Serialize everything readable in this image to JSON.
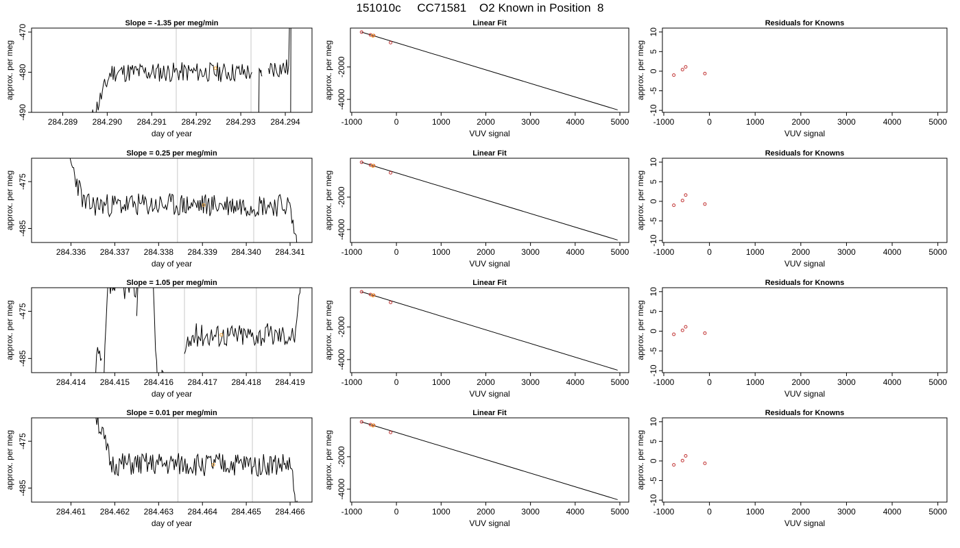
{
  "page": {
    "title": "151010c     CC71581    O2 Known in Position  8"
  },
  "chart_data": [
    {
      "row": 1,
      "type": "line",
      "title": "Slope =  -1.35  per meg/min",
      "xlabel": "day of year",
      "ylabel": "approx. per meg",
      "xlim": [
        284.2883,
        284.2946
      ],
      "ylim": [
        -490,
        -469
      ],
      "xticks": [
        284.289,
        284.29,
        284.291,
        284.292,
        284.293,
        284.294
      ],
      "xtick_labels": [
        "284.289",
        "284.290",
        "284.291",
        "284.292",
        "284.293",
        "284.294"
      ],
      "yticks": [
        -490,
        -480,
        -470
      ],
      "ytick_labels": [
        "-490",
        "-480",
        "-470"
      ],
      "vlines": [
        284.29155,
        284.29323
      ],
      "marker": {
        "x": 284.29243,
        "y": -479,
        "color": "#f0a030"
      },
      "seed": 11,
      "segments": [
        {
          "start": 284.28965,
          "end": 284.29325,
          "y0": -492,
          "y1": -480
        },
        {
          "start": 284.2934,
          "end": 284.29348,
          "y0": -496,
          "y1": -481
        },
        {
          "start": 284.29362,
          "end": 284.2941,
          "y0": -479,
          "y1": -479,
          "y2": -465
        },
        {
          "start": 284.29412,
          "end": 284.29416,
          "y0": -495,
          "y1": -465
        }
      ]
    },
    {
      "row": 1,
      "type": "scatter",
      "title": "Linear Fit",
      "xlabel": "VUV signal",
      "ylabel": "approx. per meg",
      "xlim": [
        -1030,
        5200
      ],
      "ylim": [
        -4800,
        400
      ],
      "xticks": [
        -1000,
        0,
        1000,
        2000,
        3000,
        4000,
        5000
      ],
      "xtick_labels": [
        "-1000",
        "0",
        "1000",
        "2000",
        "3000",
        "4000",
        "5000"
      ],
      "yticks": [
        -4000,
        -2000
      ],
      "ytick_labels": [
        "-4000",
        "-2000"
      ],
      "points": [
        [
          -780,
          150
        ],
        [
          -580,
          -20
        ],
        [
          -510,
          -60
        ],
        [
          -130,
          -500
        ]
      ],
      "highlight": [
        -525,
        -70
      ],
      "fit_line": [
        [
          -780,
          150
        ],
        [
          4950,
          -4650
        ]
      ]
    },
    {
      "row": 1,
      "type": "scatter",
      "title": "Residuals for Knowns",
      "xlabel": "VUV signal",
      "ylabel": "approx. per meg",
      "xlim": [
        -1030,
        5200
      ],
      "ylim": [
        -10.5,
        11
      ],
      "xticks": [
        -1000,
        0,
        1000,
        2000,
        3000,
        4000,
        5000
      ],
      "xtick_labels": [
        "-1000",
        "0",
        "1000",
        "2000",
        "3000",
        "4000",
        "5000"
      ],
      "yticks": [
        -10,
        -5,
        0,
        5,
        10
      ],
      "ytick_labels": [
        "-10",
        "-5",
        "0",
        "5",
        "10"
      ],
      "points": [
        [
          -780,
          -1.0
        ],
        [
          -590,
          0.4
        ],
        [
          -520,
          1.1
        ],
        [
          -100,
          -0.6
        ]
      ]
    },
    {
      "row": 2,
      "type": "line",
      "title": "Slope =  0.25  per meg/min",
      "xlabel": "day of year",
      "ylabel": "approx. per meg",
      "xlim": [
        284.3351,
        284.3415
      ],
      "ylim": [
        -488,
        -470
      ],
      "xticks": [
        284.336,
        284.337,
        284.338,
        284.339,
        284.34,
        284.341
      ],
      "xtick_labels": [
        "284.336",
        "284.337",
        "284.338",
        "284.339",
        "284.340",
        "284.341"
      ],
      "yticks": [
        -485,
        -475
      ],
      "ytick_labels": [
        "-485",
        "-475"
      ],
      "vlines": [
        284.33843,
        284.34017
      ],
      "marker": {
        "x": 284.33903,
        "y": -480,
        "color": "#f0a030"
      },
      "seed": 23,
      "segments": [
        {
          "start": 284.33589,
          "end": 284.34119,
          "y0": -468,
          "y1": -480,
          "y2": -490
        }
      ]
    },
    {
      "row": 2,
      "type": "scatter",
      "title": "Linear Fit",
      "xlabel": "VUV signal",
      "ylabel": "approx. per meg",
      "xlim": [
        -1030,
        5200
      ],
      "ylim": [
        -4800,
        400
      ],
      "xticks": [
        -1000,
        0,
        1000,
        2000,
        3000,
        4000,
        5000
      ],
      "xtick_labels": [
        "-1000",
        "0",
        "1000",
        "2000",
        "3000",
        "4000",
        "5000"
      ],
      "yticks": [
        -4000,
        -2000
      ],
      "ytick_labels": [
        "-4000",
        "-2000"
      ],
      "points": [
        [
          -780,
          150
        ],
        [
          -580,
          -20
        ],
        [
          -510,
          -60
        ],
        [
          -130,
          -500
        ]
      ],
      "highlight": [
        -525,
        -70
      ],
      "fit_line": [
        [
          -780,
          150
        ],
        [
          4950,
          -4650
        ]
      ]
    },
    {
      "row": 2,
      "type": "scatter",
      "title": "Residuals for Knowns",
      "xlabel": "VUV signal",
      "ylabel": "approx. per meg",
      "xlim": [
        -1030,
        5200
      ],
      "ylim": [
        -10.5,
        11
      ],
      "xticks": [
        -1000,
        0,
        1000,
        2000,
        3000,
        4000,
        5000
      ],
      "xtick_labels": [
        "-1000",
        "0",
        "1000",
        "2000",
        "3000",
        "4000",
        "5000"
      ],
      "yticks": [
        -10,
        -5,
        0,
        5,
        10
      ],
      "ytick_labels": [
        "-10",
        "-5",
        "0",
        "5",
        "10"
      ],
      "points": [
        [
          -780,
          -1.0
        ],
        [
          -590,
          0.2
        ],
        [
          -520,
          1.6
        ],
        [
          -100,
          -0.7
        ]
      ]
    },
    {
      "row": 3,
      "type": "line",
      "title": "Slope =  1.05  per meg/min",
      "xlabel": "day of year",
      "ylabel": "approx. per meg",
      "xlim": [
        284.4131,
        284.4195
      ],
      "ylim": [
        -488,
        -470
      ],
      "xticks": [
        284.414,
        284.415,
        284.416,
        284.417,
        284.418,
        284.419
      ],
      "xtick_labels": [
        "284.414",
        "284.415",
        "284.416",
        "284.417",
        "284.418",
        "284.419"
      ],
      "yticks": [
        -485,
        -475
      ],
      "ytick_labels": [
        "-485",
        "-475"
      ],
      "vlines": [
        284.41659,
        284.41823
      ],
      "marker": {
        "x": 284.41743,
        "y": -480,
        "color": "#f0a030"
      },
      "seed": 37,
      "segments": [
        {
          "start": 284.41456,
          "end": 284.4147,
          "y0": -489,
          "y1": -485
        },
        {
          "start": 284.41475,
          "end": 284.4155,
          "y0": -490,
          "y1": -470
        },
        {
          "start": 284.4155,
          "end": 284.41588,
          "y0": -476,
          "y1": -466
        },
        {
          "start": 284.41588,
          "end": 284.41659,
          "y0": -470,
          "y1": -490
        },
        {
          "start": 284.41659,
          "end": 284.41925,
          "y0": -484,
          "y1": -480,
          "y2": -467
        }
      ]
    },
    {
      "row": 3,
      "type": "scatter",
      "title": "Linear Fit",
      "xlabel": "VUV signal",
      "ylabel": "approx. per meg",
      "xlim": [
        -1030,
        5200
      ],
      "ylim": [
        -4800,
        400
      ],
      "xticks": [
        -1000,
        0,
        1000,
        2000,
        3000,
        4000,
        5000
      ],
      "xtick_labels": [
        "-1000",
        "0",
        "1000",
        "2000",
        "3000",
        "4000",
        "5000"
      ],
      "yticks": [
        -4000,
        -2000
      ],
      "ytick_labels": [
        "-4000",
        "-2000"
      ],
      "points": [
        [
          -780,
          150
        ],
        [
          -580,
          -20
        ],
        [
          -510,
          -60
        ],
        [
          -130,
          -500
        ]
      ],
      "highlight": [
        -525,
        -70
      ],
      "fit_line": [
        [
          -780,
          150
        ],
        [
          4950,
          -4650
        ]
      ]
    },
    {
      "row": 3,
      "type": "scatter",
      "title": "Residuals for Knowns",
      "xlabel": "VUV signal",
      "ylabel": "approx. per meg",
      "xlim": [
        -1030,
        5200
      ],
      "ylim": [
        -10.5,
        11
      ],
      "xticks": [
        -1000,
        0,
        1000,
        2000,
        3000,
        4000,
        5000
      ],
      "xtick_labels": [
        "-1000",
        "0",
        "1000",
        "2000",
        "3000",
        "4000",
        "5000"
      ],
      "yticks": [
        -10,
        -5,
        0,
        5,
        10
      ],
      "ytick_labels": [
        "-10",
        "-5",
        "0",
        "5",
        "10"
      ],
      "points": [
        [
          -780,
          -0.8
        ],
        [
          -590,
          0.2
        ],
        [
          -520,
          1.1
        ],
        [
          -100,
          -0.5
        ]
      ]
    },
    {
      "row": 4,
      "type": "line",
      "title": "Slope =  0.01  per meg/min",
      "xlabel": "day of year",
      "ylabel": "approx. per meg",
      "xlim": [
        284.4601,
        284.4665
      ],
      "ylim": [
        -488,
        -470
      ],
      "xticks": [
        284.461,
        284.462,
        284.463,
        284.464,
        284.465,
        284.466
      ],
      "xtick_labels": [
        "284.461",
        "284.462",
        "284.463",
        "284.464",
        "284.465",
        "284.466"
      ],
      "yticks": [
        -485,
        -475
      ],
      "ytick_labels": [
        "-485",
        "-475"
      ],
      "vlines": [
        284.46344,
        284.46514
      ],
      "marker": {
        "x": 284.46425,
        "y": -480,
        "color": "#f0a030"
      },
      "seed": 51,
      "segments": [
        {
          "start": 284.46154,
          "end": 284.46618,
          "y0": -468,
          "y1": -480,
          "y2": -490
        }
      ]
    },
    {
      "row": 4,
      "type": "scatter",
      "title": "Linear Fit",
      "xlabel": "VUV signal",
      "ylabel": "approx. per meg",
      "xlim": [
        -1030,
        5200
      ],
      "ylim": [
        -4800,
        400
      ],
      "xticks": [
        -1000,
        0,
        1000,
        2000,
        3000,
        4000,
        5000
      ],
      "xtick_labels": [
        "-1000",
        "0",
        "1000",
        "2000",
        "3000",
        "4000",
        "5000"
      ],
      "yticks": [
        -4000,
        -2000
      ],
      "ytick_labels": [
        "-4000",
        "-2000"
      ],
      "points": [
        [
          -780,
          150
        ],
        [
          -580,
          -20
        ],
        [
          -510,
          -60
        ],
        [
          -130,
          -500
        ]
      ],
      "highlight": [
        -525,
        -70
      ],
      "fit_line": [
        [
          -780,
          150
        ],
        [
          4950,
          -4650
        ]
      ]
    },
    {
      "row": 4,
      "type": "scatter",
      "title": "Residuals for Knowns",
      "xlabel": "VUV signal",
      "ylabel": "approx. per meg",
      "xlim": [
        -1030,
        5200
      ],
      "ylim": [
        -10.5,
        11
      ],
      "xticks": [
        -1000,
        0,
        1000,
        2000,
        3000,
        4000,
        5000
      ],
      "xtick_labels": [
        "-1000",
        "0",
        "1000",
        "2000",
        "3000",
        "4000",
        "5000"
      ],
      "yticks": [
        -10,
        -5,
        0,
        5,
        10
      ],
      "ytick_labels": [
        "-10",
        "-5",
        "0",
        "5",
        "10"
      ],
      "points": [
        [
          -780,
          -1.0
        ],
        [
          -590,
          0.1
        ],
        [
          -520,
          1.3
        ],
        [
          -100,
          -0.6
        ]
      ]
    }
  ],
  "colors": {
    "axis": "#000000",
    "vline": "#c8c8c8",
    "points": "#c03030",
    "highlight": "#f0a030",
    "line": "#000000"
  }
}
